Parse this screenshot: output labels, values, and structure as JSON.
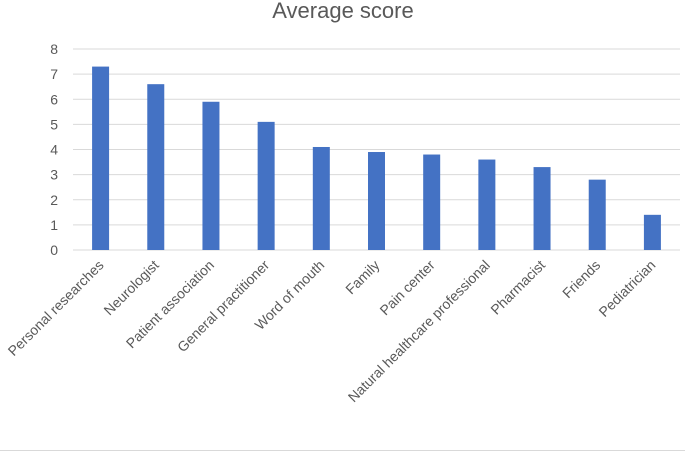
{
  "chart_data": {
    "type": "bar",
    "title": "Average score",
    "xlabel": "",
    "ylabel": "",
    "ylim": [
      0,
      8
    ],
    "yticks": [
      0,
      1,
      2,
      3,
      4,
      5,
      6,
      7,
      8
    ],
    "grid": true,
    "legend": "none",
    "bar_color": "#4472c4",
    "categories": [
      "Personal researches",
      "Neurologist",
      "Patient association",
      "General practitioner",
      "Word of mouth",
      "Family",
      "Pain center",
      "Natural healthcare professional",
      "Pharmacist",
      "Friends",
      "Pediatrician"
    ],
    "values": [
      7.3,
      6.6,
      5.9,
      5.1,
      4.1,
      3.9,
      3.8,
      3.6,
      3.3,
      2.8,
      1.4
    ]
  }
}
